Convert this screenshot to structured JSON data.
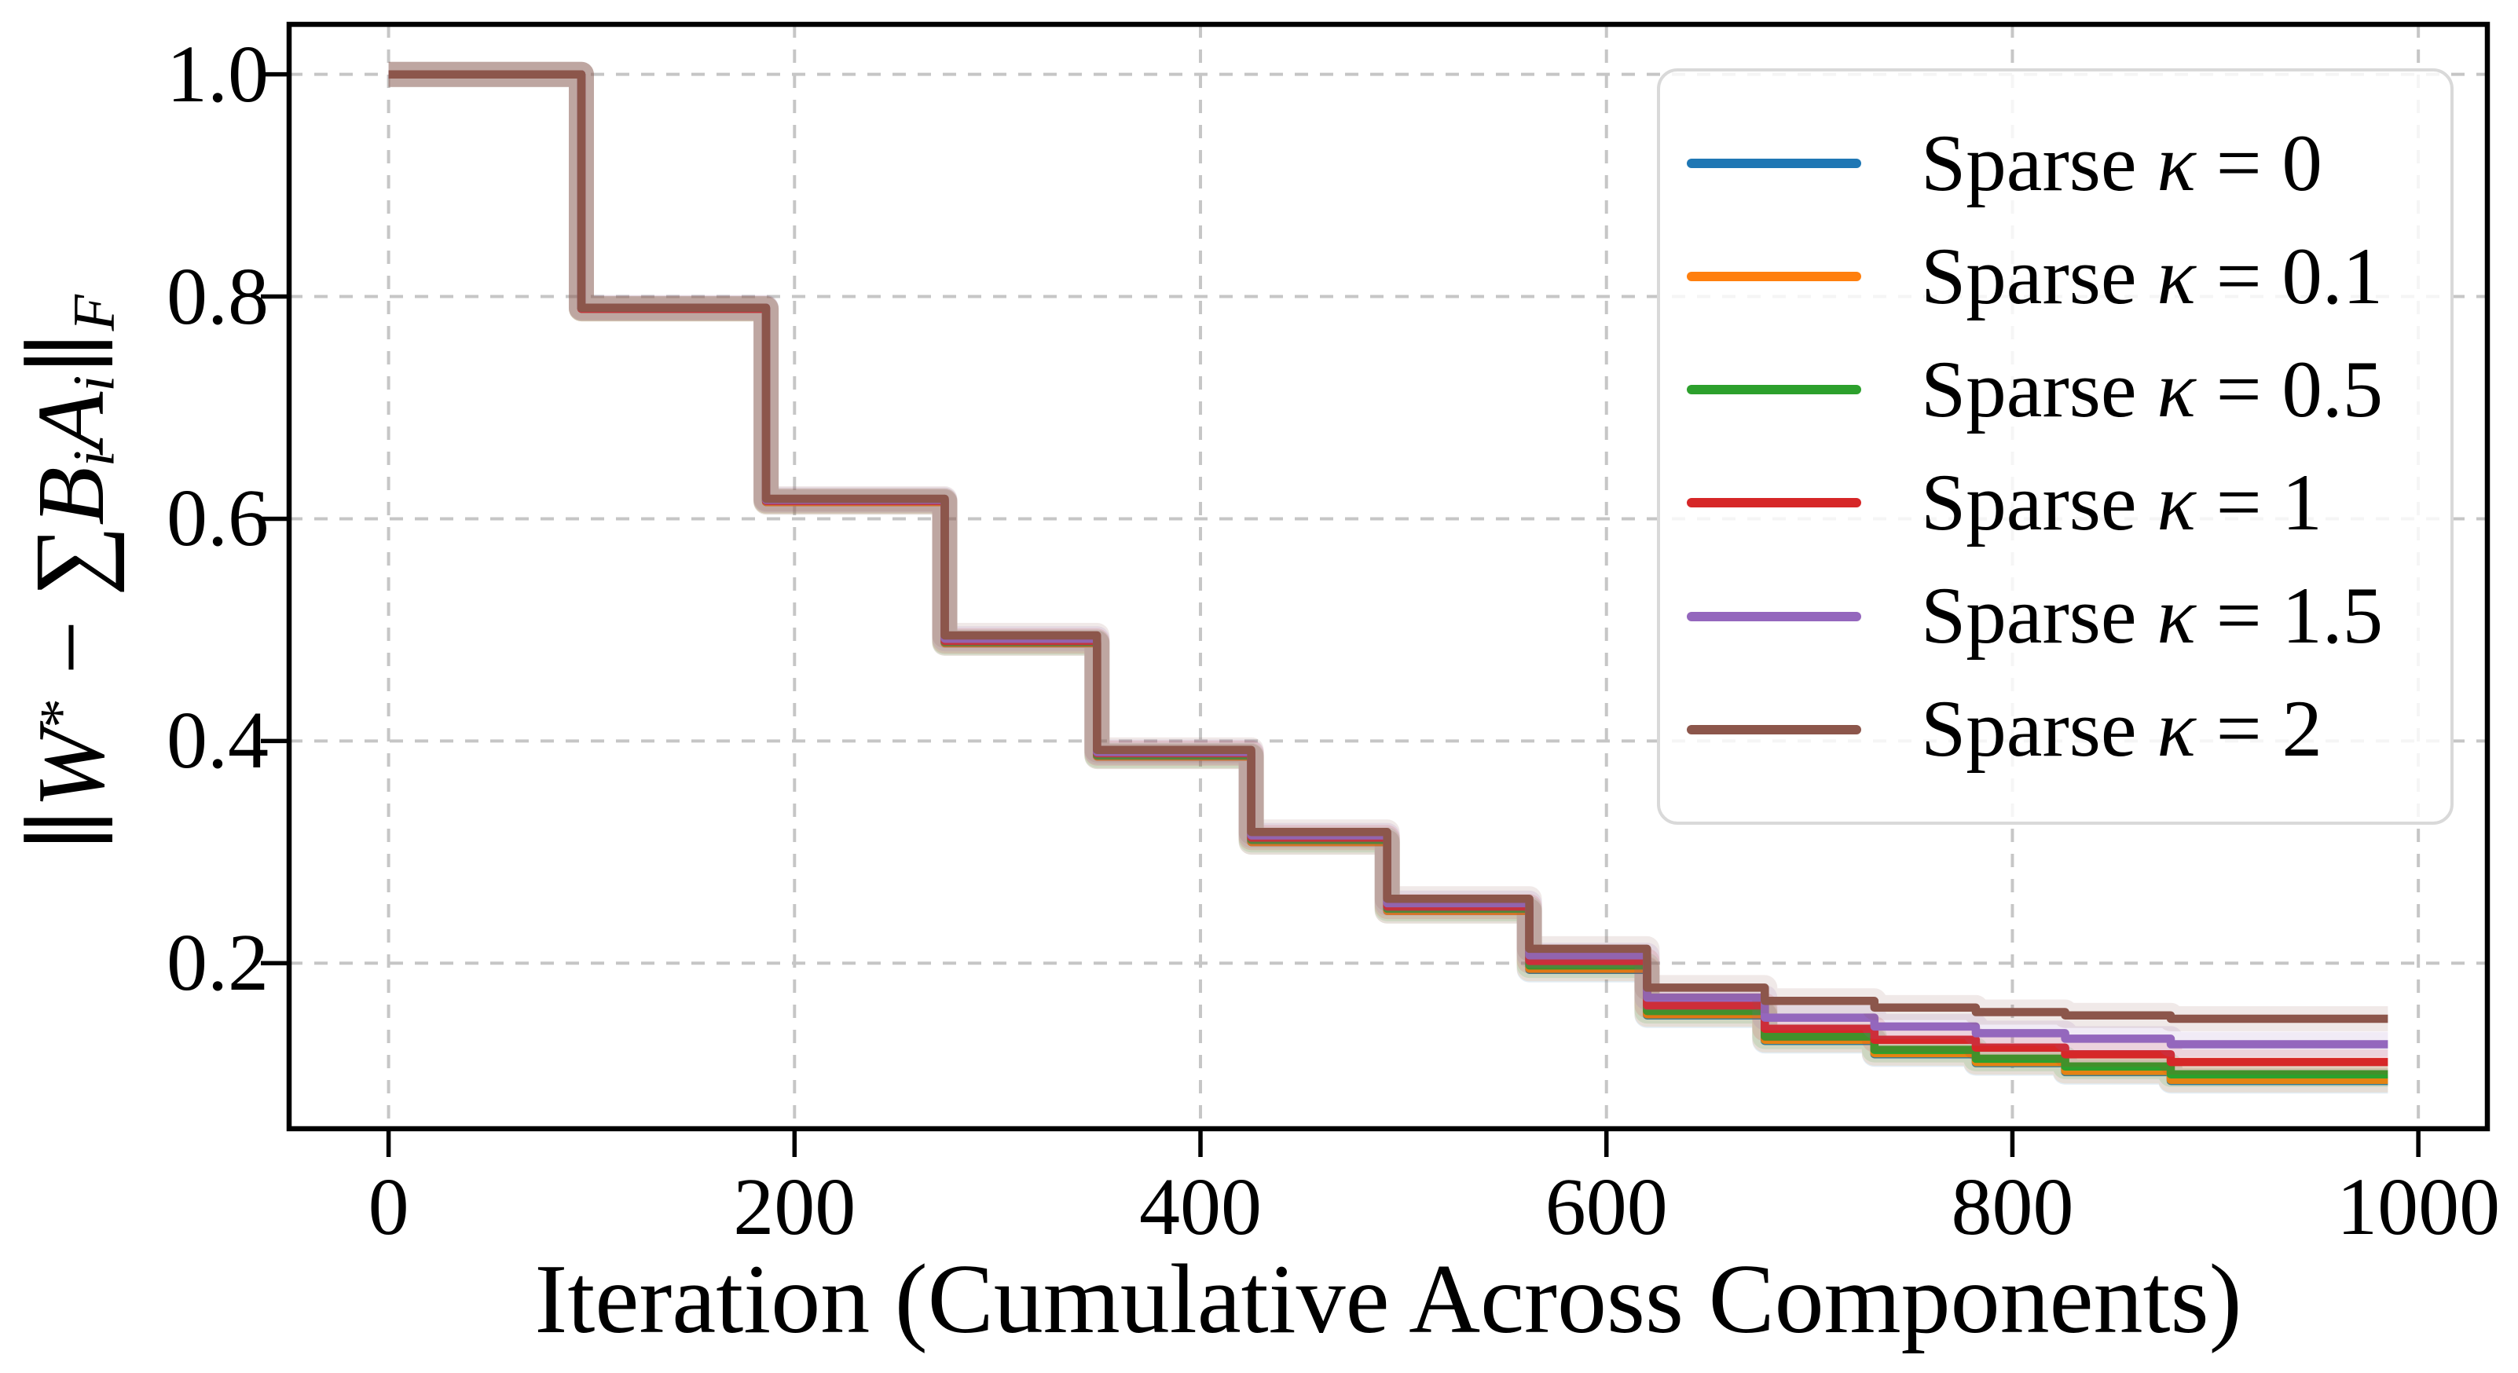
{
  "figure": {
    "background": "#ffffff"
  },
  "axes": {
    "xlabel": "Iteration (Cumulative Across Components)",
    "ylabel_segments": [
      {
        "text": "∥",
        "style": "up"
      },
      {
        "text": "W",
        "style": "it"
      },
      {
        "text": "*",
        "style": "sup"
      },
      {
        "text": " − ",
        "style": "up"
      },
      {
        "text": "∑",
        "style": "sum"
      },
      {
        "text": "B",
        "style": "it"
      },
      {
        "text": "i",
        "style": "subit"
      },
      {
        "text": "A",
        "style": "it"
      },
      {
        "text": "i",
        "style": "subit"
      },
      {
        "text": "∥",
        "style": "up"
      },
      {
        "text": "F",
        "style": "subit"
      }
    ],
    "x_tick_labels": [
      "0",
      "200",
      "400",
      "600",
      "800",
      "1000"
    ],
    "x_tick_values": [
      0,
      200,
      400,
      600,
      800,
      1000
    ],
    "y_tick_labels": [
      "1.0",
      "0.8",
      "0.6",
      "0.4",
      "0.2"
    ],
    "y_tick_values": [
      1.0,
      0.8,
      0.6,
      0.4,
      0.2
    ],
    "grid": true,
    "grid_color": "#c6c6c6",
    "spine_color": "#000000",
    "tick_color": "#000000"
  },
  "legend": {
    "position": "upper right",
    "border_color": "#d9d9d9",
    "items": [
      {
        "label_prefix": "Sparse",
        "kappa": "κ",
        "value": "= 0",
        "color": "#1f77b4"
      },
      {
        "label_prefix": "Sparse",
        "kappa": "κ",
        "value": "= 0.1",
        "color": "#ff7f0e"
      },
      {
        "label_prefix": "Sparse",
        "kappa": "κ",
        "value": "= 0.5",
        "color": "#2ca02c"
      },
      {
        "label_prefix": "Sparse",
        "kappa": "κ",
        "value": "= 1",
        "color": "#d62728"
      },
      {
        "label_prefix": "Sparse",
        "kappa": "κ",
        "value": "= 1.5",
        "color": "#9467bd"
      },
      {
        "label_prefix": "Sparse",
        "kappa": "κ",
        "value": "= 2",
        "color": "#8c564b"
      }
    ]
  },
  "chart_data": {
    "type": "line",
    "subtype": "step",
    "title": "",
    "xlabel": "Iteration (Cumulative Across Components)",
    "ylabel": "||W* - sum B_i A_i||_F",
    "xlim": [
      -49,
      1034
    ],
    "ylim": [
      0.051,
      1.045
    ],
    "grid": true,
    "legend_position": "upper right",
    "step_boundaries": [
      0,
      95,
      186,
      274,
      349,
      425,
      492,
      562,
      620,
      678,
      732,
      782,
      826,
      878,
      985
    ],
    "series": [
      {
        "name": "Sparse κ = 0",
        "color": "#1f77b4",
        "levels": [
          1.0,
          0.789,
          0.615,
          0.488,
          0.386,
          0.309,
          0.247,
          0.194,
          0.153,
          0.13,
          0.118,
          0.11,
          0.102,
          0.094
        ]
      },
      {
        "name": "Sparse κ = 0.1",
        "color": "#ff7f0e",
        "levels": [
          1.0,
          0.789,
          0.615,
          0.488,
          0.386,
          0.309,
          0.247,
          0.195,
          0.154,
          0.131,
          0.119,
          0.111,
          0.103,
          0.095
        ]
      },
      {
        "name": "Sparse κ = 0.5",
        "color": "#2ca02c",
        "levels": [
          1.0,
          0.789,
          0.616,
          0.489,
          0.387,
          0.311,
          0.249,
          0.198,
          0.157,
          0.134,
          0.122,
          0.114,
          0.107,
          0.1
        ]
      },
      {
        "name": "Sparse κ = 1",
        "color": "#d62728",
        "levels": [
          1.0,
          0.789,
          0.616,
          0.49,
          0.389,
          0.313,
          0.251,
          0.202,
          0.162,
          0.141,
          0.131,
          0.124,
          0.118,
          0.111
        ]
      },
      {
        "name": "Sparse κ = 1.5",
        "color": "#9467bd",
        "levels": [
          1.0,
          0.79,
          0.617,
          0.492,
          0.39,
          0.315,
          0.254,
          0.207,
          0.169,
          0.151,
          0.143,
          0.137,
          0.132,
          0.127
        ]
      },
      {
        "name": "Sparse κ = 2",
        "color": "#8c564b",
        "levels": [
          1.0,
          0.79,
          0.618,
          0.495,
          0.392,
          0.318,
          0.258,
          0.213,
          0.178,
          0.166,
          0.16,
          0.156,
          0.153,
          0.15
        ]
      }
    ]
  }
}
